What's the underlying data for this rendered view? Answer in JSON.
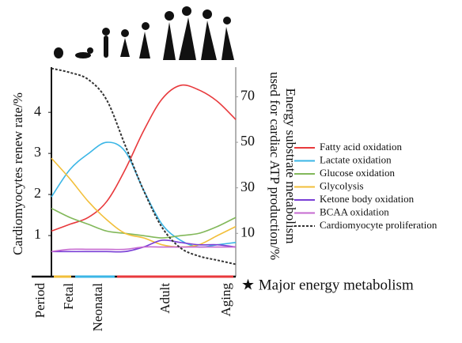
{
  "chart_data": {
    "type": "line",
    "ylabel": "Cardiomyocytes renew rate/%",
    "y2label": [
      "Energy substrate metabolism",
      "used for cardiac ATP production/%"
    ],
    "x": [
      0,
      1,
      2,
      3,
      4,
      5,
      6,
      7,
      8,
      9,
      10
    ],
    "xlim": [
      0,
      10
    ],
    "ylim": [
      0,
      5.1
    ],
    "yticks": [
      1,
      2,
      3,
      4
    ],
    "y2lim": [
      -9,
      83
    ],
    "y2ticks": [
      10,
      30,
      50,
      70
    ],
    "series": [
      {
        "name": "Fatty acid oxidation",
        "color": "#e8393c",
        "axis": "y2",
        "values": [
          11,
          14,
          17,
          24,
          38,
          55,
          69,
          75,
          73,
          68,
          60
        ]
      },
      {
        "name": "Lactate oxidation",
        "color": "#3bb6e6",
        "axis": "y2",
        "values": [
          26,
          38,
          45,
          50,
          46,
          29,
          14,
          7,
          4,
          5,
          6
        ]
      },
      {
        "name": "Glucose oxidation",
        "color": "#82b85a",
        "axis": "y2",
        "values": [
          21,
          17,
          14,
          11,
          10,
          9,
          8,
          9,
          10,
          13,
          17
        ]
      },
      {
        "name": "Glycolysis",
        "color": "#f2bf3a",
        "axis": "y2",
        "values": [
          43,
          34,
          24,
          16,
          10,
          8,
          5,
          4,
          5,
          9,
          13
        ]
      },
      {
        "name": "Ketone body oxidation",
        "color": "#7a3fd6",
        "axis": "y2",
        "values": [
          2,
          2,
          2,
          2,
          2,
          4,
          7,
          6,
          5,
          5,
          4
        ]
      },
      {
        "name": "BCAA oxidation",
        "color": "#c66ad0",
        "axis": "y2",
        "values": [
          2,
          3,
          3,
          3,
          3,
          4,
          4,
          4,
          4,
          4,
          4
        ]
      },
      {
        "name": "Cardiomyocyte proliferation",
        "color": "#333333",
        "axis": "y",
        "dashed": true,
        "values": [
          5.07,
          4.97,
          4.8,
          4.3,
          3.2,
          2.1,
          1.2,
          0.7,
          0.5,
          0.4,
          0.3
        ]
      }
    ],
    "period_label": "Period",
    "periods": [
      "Fetal",
      "Neonatal",
      "Adult",
      "Aging"
    ],
    "annotation": "★ Major energy metabolism"
  }
}
